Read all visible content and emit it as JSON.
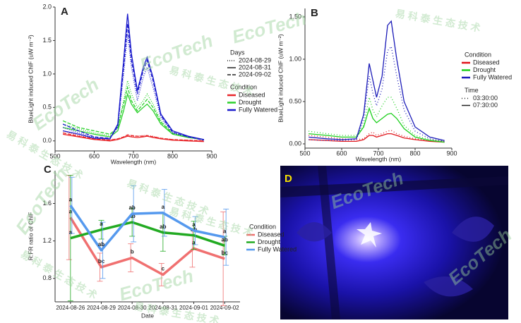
{
  "chart_data": [
    {
      "type": "line",
      "label": "A",
      "xlabel": "Wavelength (nm)",
      "ylabel": "BlueLight induced ChlF (uW m⁻²)",
      "x": [
        520,
        560,
        600,
        640,
        660,
        675,
        685,
        695,
        710,
        725,
        735,
        750,
        770,
        800,
        840,
        880
      ],
      "xlim": [
        500,
        900
      ],
      "xticks": [
        500,
        600,
        700,
        800,
        900
      ],
      "ylim": [
        -0.15,
        2.0
      ],
      "yticks": [
        {
          "value": 0,
          "label": "0.0"
        },
        {
          "value": 0.5,
          "label": "0.5"
        },
        {
          "value": 1,
          "label": "1.0"
        },
        {
          "value": 1.5,
          "label": "1.5"
        },
        {
          "value": 2,
          "label": "2.0"
        }
      ],
      "style_title": "Days",
      "styles": [
        "2024-08-29",
        "2024-08-31",
        "2024-09-02"
      ],
      "dashes": [
        "1,2",
        "none",
        "5,2"
      ],
      "color_title": "Condition",
      "series": [
        {
          "name": "Diseased",
          "color": "#e8262a",
          "values": [
            [
              0.15,
              0.08,
              0.03,
              0.02,
              0.03,
              0.06,
              0.08,
              0.07,
              0.07,
              0.08,
              0.08,
              0.07,
              0.04,
              0.02,
              0.01,
              0.0
            ],
            [
              0.1,
              0.06,
              0.02,
              0.0,
              0.02,
              0.05,
              0.07,
              0.06,
              0.05,
              0.06,
              0.07,
              0.05,
              0.03,
              0.01,
              0.0,
              -0.01
            ],
            [
              0.12,
              0.07,
              0.03,
              0.01,
              0.03,
              0.06,
              0.09,
              0.08,
              0.07,
              0.07,
              0.08,
              0.06,
              0.04,
              0.02,
              0.01,
              0.0
            ]
          ]
        },
        {
          "name": "Drought",
          "color": "#2bd12b",
          "values": [
            [
              0.25,
              0.18,
              0.12,
              0.08,
              0.2,
              0.6,
              0.9,
              0.7,
              0.5,
              0.6,
              0.7,
              0.55,
              0.3,
              0.12,
              0.06,
              0.02
            ],
            [
              0.2,
              0.15,
              0.1,
              0.06,
              0.15,
              0.45,
              0.7,
              0.55,
              0.42,
              0.5,
              0.55,
              0.45,
              0.25,
              0.1,
              0.05,
              0.02
            ],
            [
              0.3,
              0.2,
              0.15,
              0.1,
              0.2,
              0.55,
              0.8,
              0.6,
              0.45,
              0.55,
              0.62,
              0.5,
              0.28,
              0.11,
              0.05,
              0.02
            ]
          ]
        },
        {
          "name": "Fully Watered",
          "color": "#1b1bcc",
          "values": [
            [
              0.2,
              0.12,
              0.05,
              0.03,
              0.2,
              1.0,
              1.6,
              1.1,
              0.6,
              0.95,
              1.1,
              0.8,
              0.35,
              0.12,
              0.06,
              0.02
            ],
            [
              0.15,
              0.1,
              0.04,
              0.03,
              0.25,
              1.2,
              1.9,
              1.3,
              0.75,
              1.1,
              1.25,
              0.95,
              0.4,
              0.15,
              0.07,
              0.02
            ],
            [
              0.25,
              0.15,
              0.06,
              0.04,
              0.22,
              1.1,
              1.75,
              1.2,
              0.7,
              1.05,
              1.2,
              0.9,
              0.38,
              0.13,
              0.06,
              0.01
            ]
          ]
        }
      ]
    },
    {
      "type": "line",
      "label": "B",
      "xlabel": "Wavelength (nm)",
      "ylabel": "BlueLight induced ChlF (uW m⁻²)",
      "x": [
        510,
        560,
        600,
        640,
        660,
        675,
        685,
        695,
        710,
        725,
        735,
        750,
        770,
        800,
        840,
        880
      ],
      "xlim": [
        500,
        900
      ],
      "xticks": [
        500,
        600,
        700,
        800,
        900
      ],
      "ylim": [
        -0.05,
        1.6
      ],
      "yticks": [
        {
          "value": 0,
          "label": "0.00"
        },
        {
          "value": 0.5,
          "label": "0.50"
        },
        {
          "value": 1,
          "label": "1.00"
        },
        {
          "value": 1.5,
          "label": "1.50"
        }
      ],
      "color_title": "Condition",
      "style_title": "Time",
      "styles": [
        "03:30:00",
        "07:30:00"
      ],
      "dashes": [
        "1,3",
        "none"
      ],
      "series": [
        {
          "name": "Diseased",
          "color": "#e0141a",
          "values": [
            [
              0.1,
              0.08,
              0.06,
              0.05,
              0.06,
              0.12,
              0.14,
              0.1,
              0.12,
              0.15,
              0.16,
              0.12,
              0.09,
              0.06,
              0.04,
              0.03
            ],
            [
              0.05,
              0.04,
              0.03,
              0.03,
              0.05,
              0.1,
              0.1,
              0.08,
              0.1,
              0.12,
              0.12,
              0.1,
              0.07,
              0.05,
              0.03,
              0.02
            ]
          ]
        },
        {
          "name": "Drought",
          "color": "#1ccf1c",
          "values": [
            [
              0.15,
              0.12,
              0.1,
              0.1,
              0.22,
              0.55,
              0.4,
              0.32,
              0.45,
              0.55,
              0.55,
              0.42,
              0.22,
              0.1,
              0.05,
              0.03
            ],
            [
              0.12,
              0.1,
              0.08,
              0.08,
              0.2,
              0.42,
              0.3,
              0.25,
              0.3,
              0.35,
              0.36,
              0.3,
              0.18,
              0.08,
              0.04,
              0.02
            ]
          ]
        },
        {
          "name": "Fully Watered",
          "color": "#1b1bb8",
          "values": [
            [
              0.05,
              0.04,
              0.04,
              0.05,
              0.3,
              0.8,
              0.6,
              0.45,
              0.65,
              1.1,
              1.15,
              0.8,
              0.4,
              0.15,
              0.06,
              0.03
            ],
            [
              0.08,
              0.06,
              0.05,
              0.06,
              0.35,
              0.95,
              0.75,
              0.55,
              0.8,
              1.4,
              1.45,
              1.0,
              0.5,
              0.2,
              0.08,
              0.04
            ]
          ]
        }
      ]
    },
    {
      "type": "line",
      "label": "C",
      "xlabel": "Date",
      "ylabel": "R:FR ratio of ChlF",
      "categories": [
        "2024-08-26",
        "2024-08-29",
        "2024-08-30",
        "2024-08-31",
        "2024-09-01",
        "2024-09-02"
      ],
      "ylim": [
        0.55,
        1.95
      ],
      "yticks": [
        0.8,
        1.2,
        1.6
      ],
      "color_title": "Condition",
      "series": [
        {
          "name": "Diseased",
          "color": "#f07070",
          "values": [
            1.45,
            0.92,
            1.02,
            0.84,
            1.12,
            1.01
          ],
          "errors": [
            0.45,
            0.15,
            0.15,
            0.12,
            0.2,
            0.5
          ],
          "letters": [
            "a",
            "bc",
            "b",
            "c",
            "a",
            "bc"
          ]
        },
        {
          "name": "Drought",
          "color": "#22aa22",
          "values": [
            1.23,
            1.32,
            1.4,
            1.29,
            1.26,
            1.15
          ],
          "errors": [
            0.67,
            0.1,
            0.15,
            0.2,
            0.15,
            0.1
          ],
          "letters": [
            "a",
            "a",
            "ab",
            "ab",
            "ab",
            "ab"
          ]
        },
        {
          "name": "Fully Watered",
          "color": "#5599ee",
          "values": [
            1.58,
            1.1,
            1.49,
            1.5,
            1.31,
            1.24
          ],
          "errors": [
            0.3,
            0.3,
            0.3,
            0.25,
            0.15,
            0.3
          ],
          "letters": [
            "a",
            "ab",
            "ab",
            "a",
            "a",
            "a"
          ]
        }
      ]
    }
  ],
  "photo": {
    "label": "D"
  },
  "watermark": {
    "brand": "EcoTech",
    "chinese": "易科泰生态技术"
  }
}
